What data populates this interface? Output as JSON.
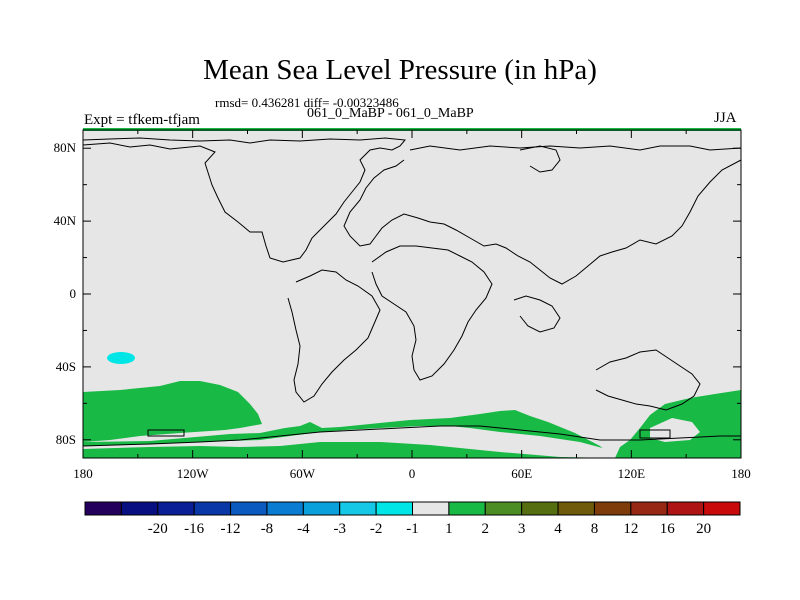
{
  "header": {
    "title": "Mean Sea Level Pressure (in hPa)",
    "stats": "rmsd= 0.436281  diff= -0.00323486",
    "subtitle": "061_0_MaBP - 061_0_MaBP",
    "left_label": "Expt = tfkem-tfjam",
    "right_label": "JJA"
  },
  "chart_data": {
    "type": "heatmap",
    "title": "Mean Sea Level Pressure (in hPa)",
    "subtitle": "061_0_MaBP - 061_0_MaBP",
    "stats_text": "rmsd= 0.436281  diff= -0.00323486",
    "experiment": "Expt = tfkem-tfjam",
    "season": "JJA",
    "projection": "cylindrical equidistant",
    "xlim": [
      180,
      540
    ],
    "ylim": [
      -90,
      90
    ],
    "x_ticks": [
      {
        "value": 180,
        "label": "180"
      },
      {
        "value": 240,
        "label": "120W"
      },
      {
        "value": 300,
        "label": "60W"
      },
      {
        "value": 360,
        "label": "0"
      },
      {
        "value": 420,
        "label": "60E"
      },
      {
        "value": 480,
        "label": "120E"
      },
      {
        "value": 540,
        "label": "180"
      }
    ],
    "y_ticks": [
      {
        "value": 80,
        "label": "80N"
      },
      {
        "value": 40,
        "label": "40N"
      },
      {
        "value": 0,
        "label": "0"
      },
      {
        "value": -40,
        "label": "40S"
      },
      {
        "value": -80,
        "label": "80S"
      }
    ],
    "background_level": "-1 to 1",
    "colorbar": {
      "levels": [
        "-20",
        "-16",
        "-12",
        "-8",
        "-4",
        "-3",
        "-2",
        "-1",
        "1",
        "2",
        "3",
        "4",
        "8",
        "12",
        "16",
        "20"
      ],
      "colors": [
        "#24005c",
        "#080f80",
        "#0a1e96",
        "#0a37a8",
        "#0a5ac0",
        "#0a7dd2",
        "#0aa0dc",
        "#14c8e6",
        "#00e6e6",
        "#e6e6e6",
        "#19b946",
        "#4b8c23",
        "#556e0f",
        "#6e5a0a",
        "#7d3c0a",
        "#962814",
        "#af1414",
        "#c80a0a"
      ]
    },
    "regions": [
      {
        "level": "1 to 2",
        "color": "#19b946",
        "area": "Southern Ocean band south of South America / South Pacific",
        "lon": [
          180,
          316
        ],
        "lat": [
          -90,
          -50
        ]
      },
      {
        "level": "1 to 2",
        "color": "#19b946",
        "area": "Antarctic coast south of Africa / Indian Ocean",
        "lon": [
          340,
          470
        ],
        "lat": [
          -90,
          -63
        ]
      },
      {
        "level": "1 to 2",
        "color": "#19b946",
        "area": "Southern Ocean south of Australia",
        "lon": [
          492,
          540
        ],
        "lat": [
          -90,
          -53
        ]
      },
      {
        "level": "-2 to -1",
        "color": "#00e6e6",
        "area": "South Pacific east of New Zealand",
        "lon": [
          190,
          198
        ],
        "lat": [
          -37,
          -32
        ]
      }
    ]
  }
}
